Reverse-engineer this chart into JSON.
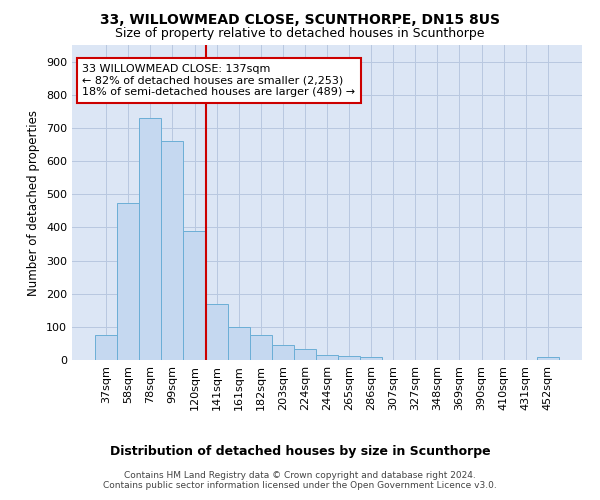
{
  "title1": "33, WILLOWMEAD CLOSE, SCUNTHORPE, DN15 8US",
  "title2": "Size of property relative to detached houses in Scunthorpe",
  "xlabel": "Distribution of detached houses by size in Scunthorpe",
  "ylabel": "Number of detached properties",
  "categories": [
    "37sqm",
    "58sqm",
    "78sqm",
    "99sqm",
    "120sqm",
    "141sqm",
    "161sqm",
    "182sqm",
    "203sqm",
    "224sqm",
    "244sqm",
    "265sqm",
    "286sqm",
    "307sqm",
    "327sqm",
    "348sqm",
    "369sqm",
    "390sqm",
    "410sqm",
    "431sqm",
    "452sqm"
  ],
  "values": [
    75,
    475,
    730,
    660,
    390,
    170,
    100,
    75,
    45,
    32,
    15,
    11,
    10,
    0,
    0,
    0,
    0,
    0,
    0,
    0,
    8
  ],
  "bar_color": "#c5d8f0",
  "bar_edgecolor": "#6baed6",
  "bg_color": "#dce6f5",
  "vline_x": 5,
  "vline_color": "#cc0000",
  "annotation_text": "33 WILLOWMEAD CLOSE: 137sqm\n← 82% of detached houses are smaller (2,253)\n18% of semi-detached houses are larger (489) →",
  "annotation_box_color": "white",
  "annotation_box_edgecolor": "#cc0000",
  "ylim": [
    0,
    950
  ],
  "yticks": [
    0,
    100,
    200,
    300,
    400,
    500,
    600,
    700,
    800,
    900
  ],
  "footer1": "Contains HM Land Registry data © Crown copyright and database right 2024.",
  "footer2": "Contains public sector information licensed under the Open Government Licence v3.0.",
  "grid_color": "#b8c8e0",
  "title_fontsize": 10,
  "subtitle_fontsize": 9,
  "annot_fontsize": 8,
  "tick_fontsize": 8,
  "ylabel_fontsize": 8.5,
  "xlabel_fontsize": 9
}
